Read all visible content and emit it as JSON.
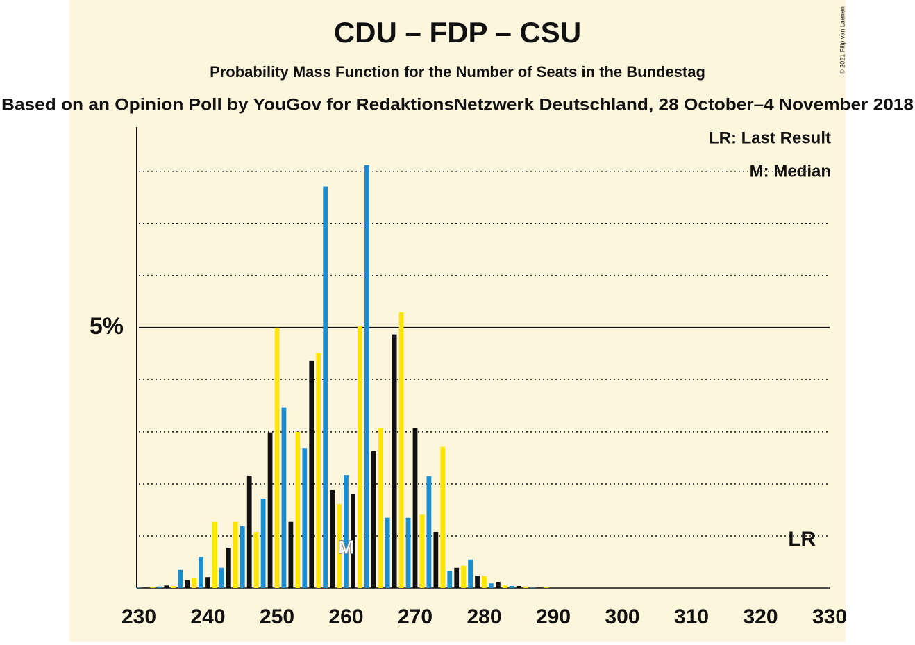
{
  "chart_data": {
    "type": "bar",
    "title": "CDU – FDP – CSU",
    "subtitle": "Probability Mass Function for the Number of Seats in the Bundestag",
    "source": "Based on an Opinion Poll by YouGov for RedaktionsNetzwerk Deutschland, 28 October–4 November 2018",
    "copyright": "© 2021 Filip van Laenen",
    "legend": [
      "LR: Last Result",
      "M: Median"
    ],
    "x": [
      230,
      231,
      232,
      233,
      234,
      235,
      236,
      237,
      238,
      239,
      240,
      241,
      242,
      243,
      244,
      245,
      246,
      247,
      248,
      249,
      250,
      251,
      252,
      253,
      254,
      255,
      256,
      257,
      258,
      259,
      260,
      261,
      262,
      263,
      264,
      265,
      266,
      267,
      268,
      269,
      270,
      271,
      272,
      273,
      274,
      275,
      276,
      277,
      278,
      279,
      280,
      281,
      282,
      283,
      284,
      285,
      286,
      287,
      288,
      289,
      290,
      291,
      292,
      293,
      294,
      295,
      296,
      297,
      298,
      299,
      300,
      301,
      302,
      303,
      304,
      305,
      306,
      307,
      308,
      309,
      310,
      311,
      312,
      313,
      314,
      315,
      316,
      317,
      318,
      319,
      320,
      321,
      322,
      323,
      324,
      325,
      326,
      327,
      328,
      329,
      330
    ],
    "values": [
      0.01,
      0.01,
      0.01,
      0.03,
      0.05,
      0.04,
      0.35,
      0.15,
      0.2,
      0.6,
      0.21,
      1.27,
      0.39,
      0.77,
      1.27,
      1.19,
      2.16,
      1.08,
      1.72,
      2.99,
      5.0,
      3.47,
      1.27,
      3.0,
      2.69,
      4.36,
      4.51,
      7.71,
      1.88,
      1.61,
      2.17,
      1.8,
      5.03,
      8.12,
      2.63,
      3.07,
      1.35,
      4.87,
      5.29,
      1.35,
      3.07,
      1.41,
      2.15,
      1.08,
      2.71,
      0.33,
      0.39,
      0.43,
      0.55,
      0.24,
      0.23,
      0.09,
      0.12,
      0.05,
      0.04,
      0.04,
      0.03,
      0.01,
      0.01,
      0.01,
      0,
      0,
      0,
      0,
      0,
      0,
      0,
      0,
      0,
      0,
      0,
      0,
      0,
      0,
      0,
      0,
      0,
      0,
      0,
      0,
      0,
      0,
      0,
      0,
      0,
      0,
      0,
      0,
      0,
      0,
      0,
      0,
      0,
      0,
      0,
      0,
      0,
      0,
      0,
      0,
      0
    ],
    "bar_colors": [
      "#1b8ed2",
      "#111111",
      "#ffe500"
    ],
    "xlim": [
      230,
      330
    ],
    "xticks": [
      230,
      240,
      250,
      260,
      270,
      280,
      290,
      300,
      310,
      320,
      330
    ],
    "ylim": [
      0,
      8.85
    ],
    "yticks": [
      {
        "value": 5,
        "label": "5%"
      }
    ],
    "minor_yticks": [
      1,
      2,
      3,
      4,
      6,
      7,
      8
    ],
    "markers": [
      {
        "label": "M",
        "seat": 260
      },
      {
        "label": "LR",
        "seat": 326
      }
    ]
  }
}
